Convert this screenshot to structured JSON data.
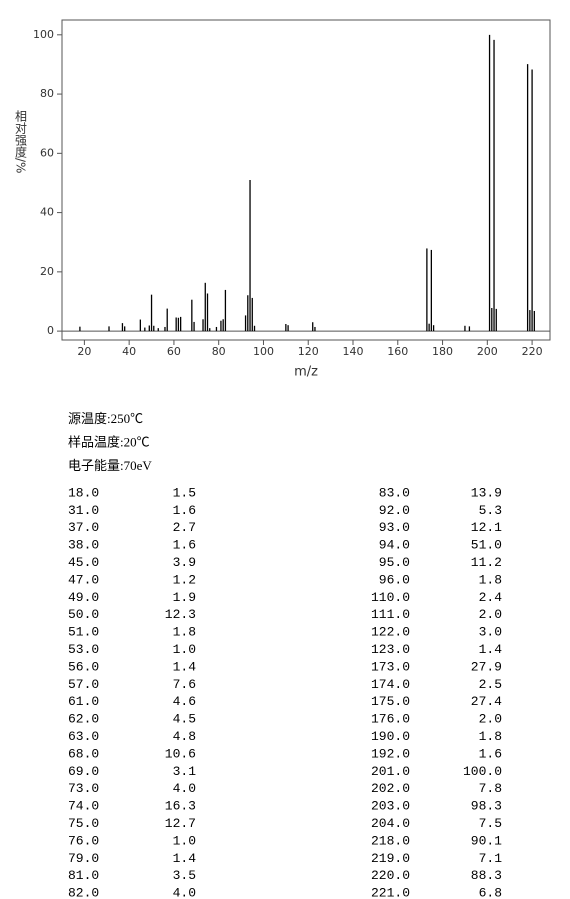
{
  "chart_data": {
    "type": "bar",
    "x_label": "m/z",
    "y_label": "相对强度/%",
    "x": [
      18,
      31,
      37,
      38,
      45,
      47,
      49,
      50,
      51,
      53,
      56,
      57,
      61,
      62,
      63,
      68,
      69,
      73,
      74,
      75,
      76,
      79,
      81,
      82,
      83,
      92,
      93,
      94,
      95,
      96,
      110,
      111,
      122,
      123,
      173,
      174,
      175,
      176,
      190,
      192,
      201,
      202,
      203,
      204,
      218,
      219,
      220,
      221
    ],
    "values": [
      1.5,
      1.6,
      2.7,
      1.6,
      3.9,
      1.2,
      1.9,
      12.3,
      1.8,
      1.0,
      1.4,
      7.6,
      4.6,
      4.5,
      4.8,
      10.6,
      3.1,
      4.0,
      16.3,
      12.7,
      1.0,
      1.4,
      3.5,
      4.0,
      13.9,
      5.3,
      12.1,
      51.0,
      11.2,
      1.8,
      2.4,
      2.0,
      3.0,
      1.4,
      27.9,
      2.5,
      27.4,
      2.0,
      1.8,
      1.6,
      100.0,
      7.8,
      98.3,
      7.5,
      90.1,
      7.1,
      88.3,
      6.8
    ],
    "color": "#000000",
    "xlim": [
      10,
      228
    ],
    "xticks": [
      20,
      40,
      60,
      80,
      100,
      120,
      140,
      160,
      180,
      200,
      220
    ],
    "ylim": [
      -3,
      105
    ],
    "yticks": [
      0,
      20,
      40,
      60,
      80,
      100
    ],
    "grid": false
  },
  "info": [
    "源温度:250℃",
    "样品温度:20℃",
    "电子能量:70eV"
  ],
  "table": {
    "rows": [
      [
        "18.0",
        "1.5"
      ],
      [
        "31.0",
        "1.6"
      ],
      [
        "37.0",
        "2.7"
      ],
      [
        "38.0",
        "1.6"
      ],
      [
        "45.0",
        "3.9"
      ],
      [
        "47.0",
        "1.2"
      ],
      [
        "49.0",
        "1.9"
      ],
      [
        "50.0",
        "12.3"
      ],
      [
        "51.0",
        "1.8"
      ],
      [
        "53.0",
        "1.0"
      ],
      [
        "56.0",
        "1.4"
      ],
      [
        "57.0",
        "7.6"
      ],
      [
        "61.0",
        "4.6"
      ],
      [
        "62.0",
        "4.5"
      ],
      [
        "63.0",
        "4.8"
      ],
      [
        "68.0",
        "10.6"
      ],
      [
        "69.0",
        "3.1"
      ],
      [
        "73.0",
        "4.0"
      ],
      [
        "74.0",
        "16.3"
      ],
      [
        "75.0",
        "12.7"
      ],
      [
        "76.0",
        "1.0"
      ],
      [
        "79.0",
        "1.4"
      ],
      [
        "81.0",
        "3.5"
      ],
      [
        "82.0",
        "4.0"
      ],
      [
        "83.0",
        "13.9"
      ],
      [
        "92.0",
        "5.3"
      ],
      [
        "93.0",
        "12.1"
      ],
      [
        "94.0",
        "51.0"
      ],
      [
        "95.0",
        "11.2"
      ],
      [
        "96.0",
        "1.8"
      ],
      [
        "110.0",
        "2.4"
      ],
      [
        "111.0",
        "2.0"
      ],
      [
        "122.0",
        "3.0"
      ],
      [
        "123.0",
        "1.4"
      ],
      [
        "173.0",
        "27.9"
      ],
      [
        "174.0",
        "2.5"
      ],
      [
        "175.0",
        "27.4"
      ],
      [
        "176.0",
        "2.0"
      ],
      [
        "190.0",
        "1.8"
      ],
      [
        "192.0",
        "1.6"
      ],
      [
        "201.0",
        "100.0"
      ],
      [
        "202.0",
        "7.8"
      ],
      [
        "203.0",
        "98.3"
      ],
      [
        "204.0",
        "7.5"
      ],
      [
        "218.0",
        "90.1"
      ],
      [
        "219.0",
        "7.1"
      ],
      [
        "220.0",
        "88.3"
      ],
      [
        "221.0",
        "6.8"
      ]
    ]
  }
}
